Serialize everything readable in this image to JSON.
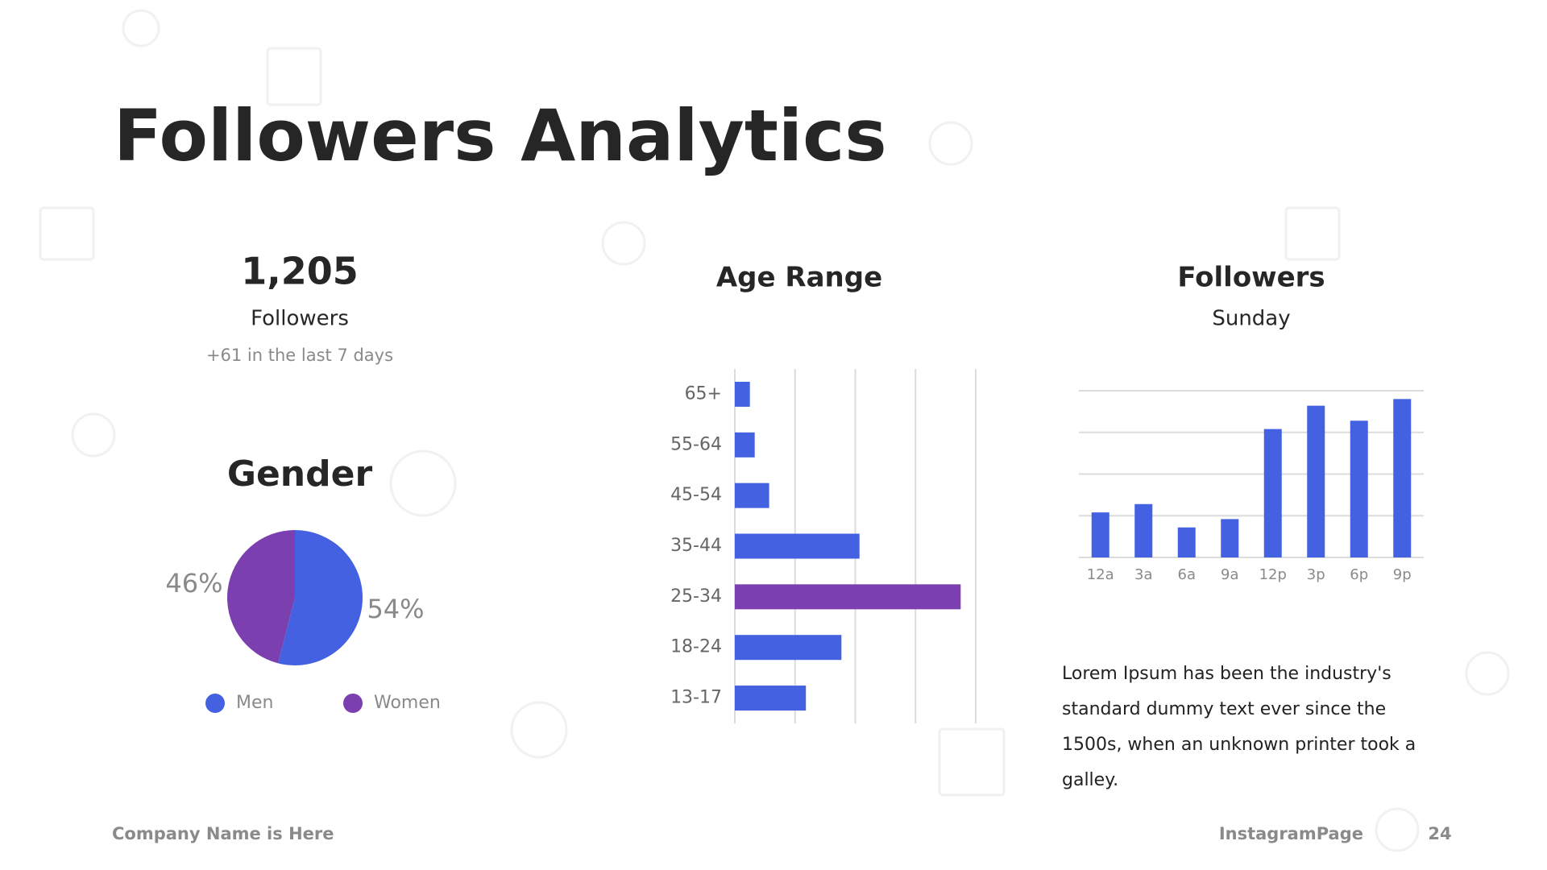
{
  "title": "Followers Analytics",
  "stat": {
    "value": "1,205",
    "label": "Followers",
    "note": "+61 in the last 7 days"
  },
  "chart_data": [
    {
      "type": "pie",
      "title": "Gender",
      "categories": [
        "Men",
        "Women"
      ],
      "values": [
        54,
        46
      ],
      "value_labels": [
        "54%",
        "46%"
      ],
      "colors": [
        "#4361e0",
        "#7b3fb0"
      ],
      "legend": "bottom"
    },
    {
      "type": "bar",
      "orientation": "horizontal",
      "title": "Age Range",
      "categories": [
        "65+",
        "55-64",
        "45-54",
        "35-44",
        "25-34",
        "18-24",
        "13-17"
      ],
      "values": [
        2.5,
        3.3,
        5.7,
        20.7,
        37.5,
        17.7,
        11.8
      ],
      "colors": [
        "#4361e0",
        "#4361e0",
        "#4361e0",
        "#4361e0",
        "#7b3fb0",
        "#4361e0",
        "#4361e0"
      ],
      "xlim": [
        0,
        40
      ],
      "xticks": [
        0,
        10,
        20,
        30,
        40
      ],
      "grid": true
    },
    {
      "type": "bar",
      "orientation": "vertical",
      "title": "Followers",
      "subtitle": "Sunday",
      "categories": [
        "12a",
        "3a",
        "6a",
        "9a",
        "12p",
        "3p",
        "6p",
        "9p"
      ],
      "values": [
        27,
        32,
        18,
        23,
        77,
        91,
        82,
        95
      ],
      "color": "#4361e0",
      "ylim": [
        0,
        100
      ],
      "yticks": [
        0,
        25,
        50,
        75,
        100
      ],
      "grid": true
    }
  ],
  "text": "Lorem Ipsum has been the industry's standard dummy text ever since the 1500s, when an unknown printer took a galley.",
  "footer": {
    "company": "Company Name is Here",
    "page_name": "InstagramPage",
    "page_number": 24
  }
}
